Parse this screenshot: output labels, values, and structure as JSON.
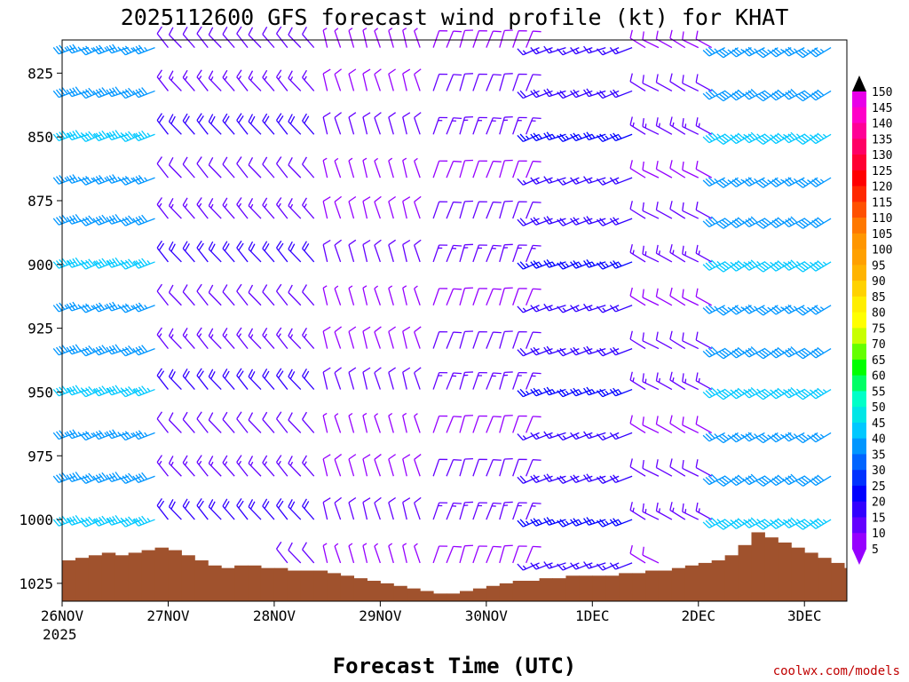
{
  "chart_data": {
    "type": "wind-barb-profile",
    "title": "2025112600 GFS forecast wind profile (kt) for KHAT",
    "xlabel": "Forecast Time (UTC)",
    "credit": "coolwx.com/models",
    "x_ticks": [
      "26NOV",
      "27NOV",
      "28NOV",
      "29NOV",
      "30NOV",
      "1DEC",
      "2DEC",
      "3DEC"
    ],
    "x_year": "2025",
    "y_ticks": [
      "825",
      "850",
      "875",
      "900",
      "925",
      "950",
      "975",
      "1000",
      "1025"
    ],
    "y_range_hpa": [
      812,
      1032
    ],
    "x_range_days": [
      0,
      7.4
    ],
    "colorbar": {
      "label_values": [
        "150",
        "145",
        "140",
        "135",
        "130",
        "125",
        "120",
        "115",
        "110",
        "105",
        "100",
        "95",
        "90",
        "85",
        "80",
        "75",
        "70",
        "65",
        "60",
        "55",
        "50",
        "45",
        "40",
        "35",
        "30",
        "25",
        "20",
        "15",
        "10",
        "5"
      ],
      "colors": [
        "#e800e8",
        "#ff00c8",
        "#ff0096",
        "#ff0064",
        "#ff0032",
        "#ff0000",
        "#ff2800",
        "#ff5000",
        "#ff7800",
        "#ff9600",
        "#ffa000",
        "#ffb400",
        "#ffd200",
        "#ffee00",
        "#ffff00",
        "#c8ff00",
        "#64ff00",
        "#00ff00",
        "#00ff64",
        "#00ffc8",
        "#00e6e6",
        "#00c8ff",
        "#0096ff",
        "#0064ff",
        "#0032ff",
        "#0000ff",
        "#3200ff",
        "#6400ff",
        "#9600ff"
      ]
    },
    "levels_hpa": [
      815,
      832,
      849,
      866,
      882,
      899,
      916,
      933,
      949,
      966,
      983,
      1000,
      1017
    ],
    "times_hr": [
      0,
      3,
      6,
      9,
      12,
      15,
      18,
      21,
      24,
      27,
      30,
      33,
      36,
      39,
      42,
      45,
      48,
      51,
      54,
      57,
      60,
      63,
      66,
      69,
      72,
      75,
      78,
      81,
      84,
      87,
      90,
      93,
      96,
      99,
      102,
      105,
      108,
      111,
      114,
      117,
      120,
      123,
      126,
      129,
      132,
      135,
      138,
      141,
      144,
      147,
      150,
      153,
      156,
      159,
      162,
      165,
      168,
      171,
      174,
      177
    ],
    "wind_segments": [
      {
        "t_start": 0,
        "t_end": 24,
        "speed_kt": 40,
        "dir_deg": 250
      },
      {
        "t_start": 24,
        "t_end": 60,
        "speed_kt": 15,
        "dir_deg": 320
      },
      {
        "t_start": 60,
        "t_end": 84,
        "speed_kt": 8,
        "dir_deg": 345
      },
      {
        "t_start": 84,
        "t_end": 108,
        "speed_kt": 12,
        "dir_deg": 20
      },
      {
        "t_start": 108,
        "t_end": 132,
        "speed_kt": 20,
        "dir_deg": 250
      },
      {
        "t_start": 132,
        "t_end": 150,
        "speed_kt": 12,
        "dir_deg": 300
      },
      {
        "t_start": 150,
        "t_end": 178,
        "speed_kt": 40,
        "dir_deg": 240
      }
    ],
    "surface_pressure_hpa": [
      1016,
      1015,
      1014,
      1013,
      1014,
      1013,
      1012,
      1011,
      1012,
      1014,
      1016,
      1018,
      1019,
      1018,
      1018,
      1019,
      1019,
      1020,
      1020,
      1020,
      1021,
      1022,
      1023,
      1024,
      1025,
      1026,
      1027,
      1028,
      1029,
      1029,
      1028,
      1027,
      1026,
      1025,
      1024,
      1024,
      1023,
      1023,
      1022,
      1022,
      1022,
      1022,
      1021,
      1021,
      1020,
      1020,
      1019,
      1018,
      1017,
      1016,
      1014,
      1010,
      1005,
      1007,
      1009,
      1011,
      1013,
      1015,
      1017,
      1019
    ]
  }
}
